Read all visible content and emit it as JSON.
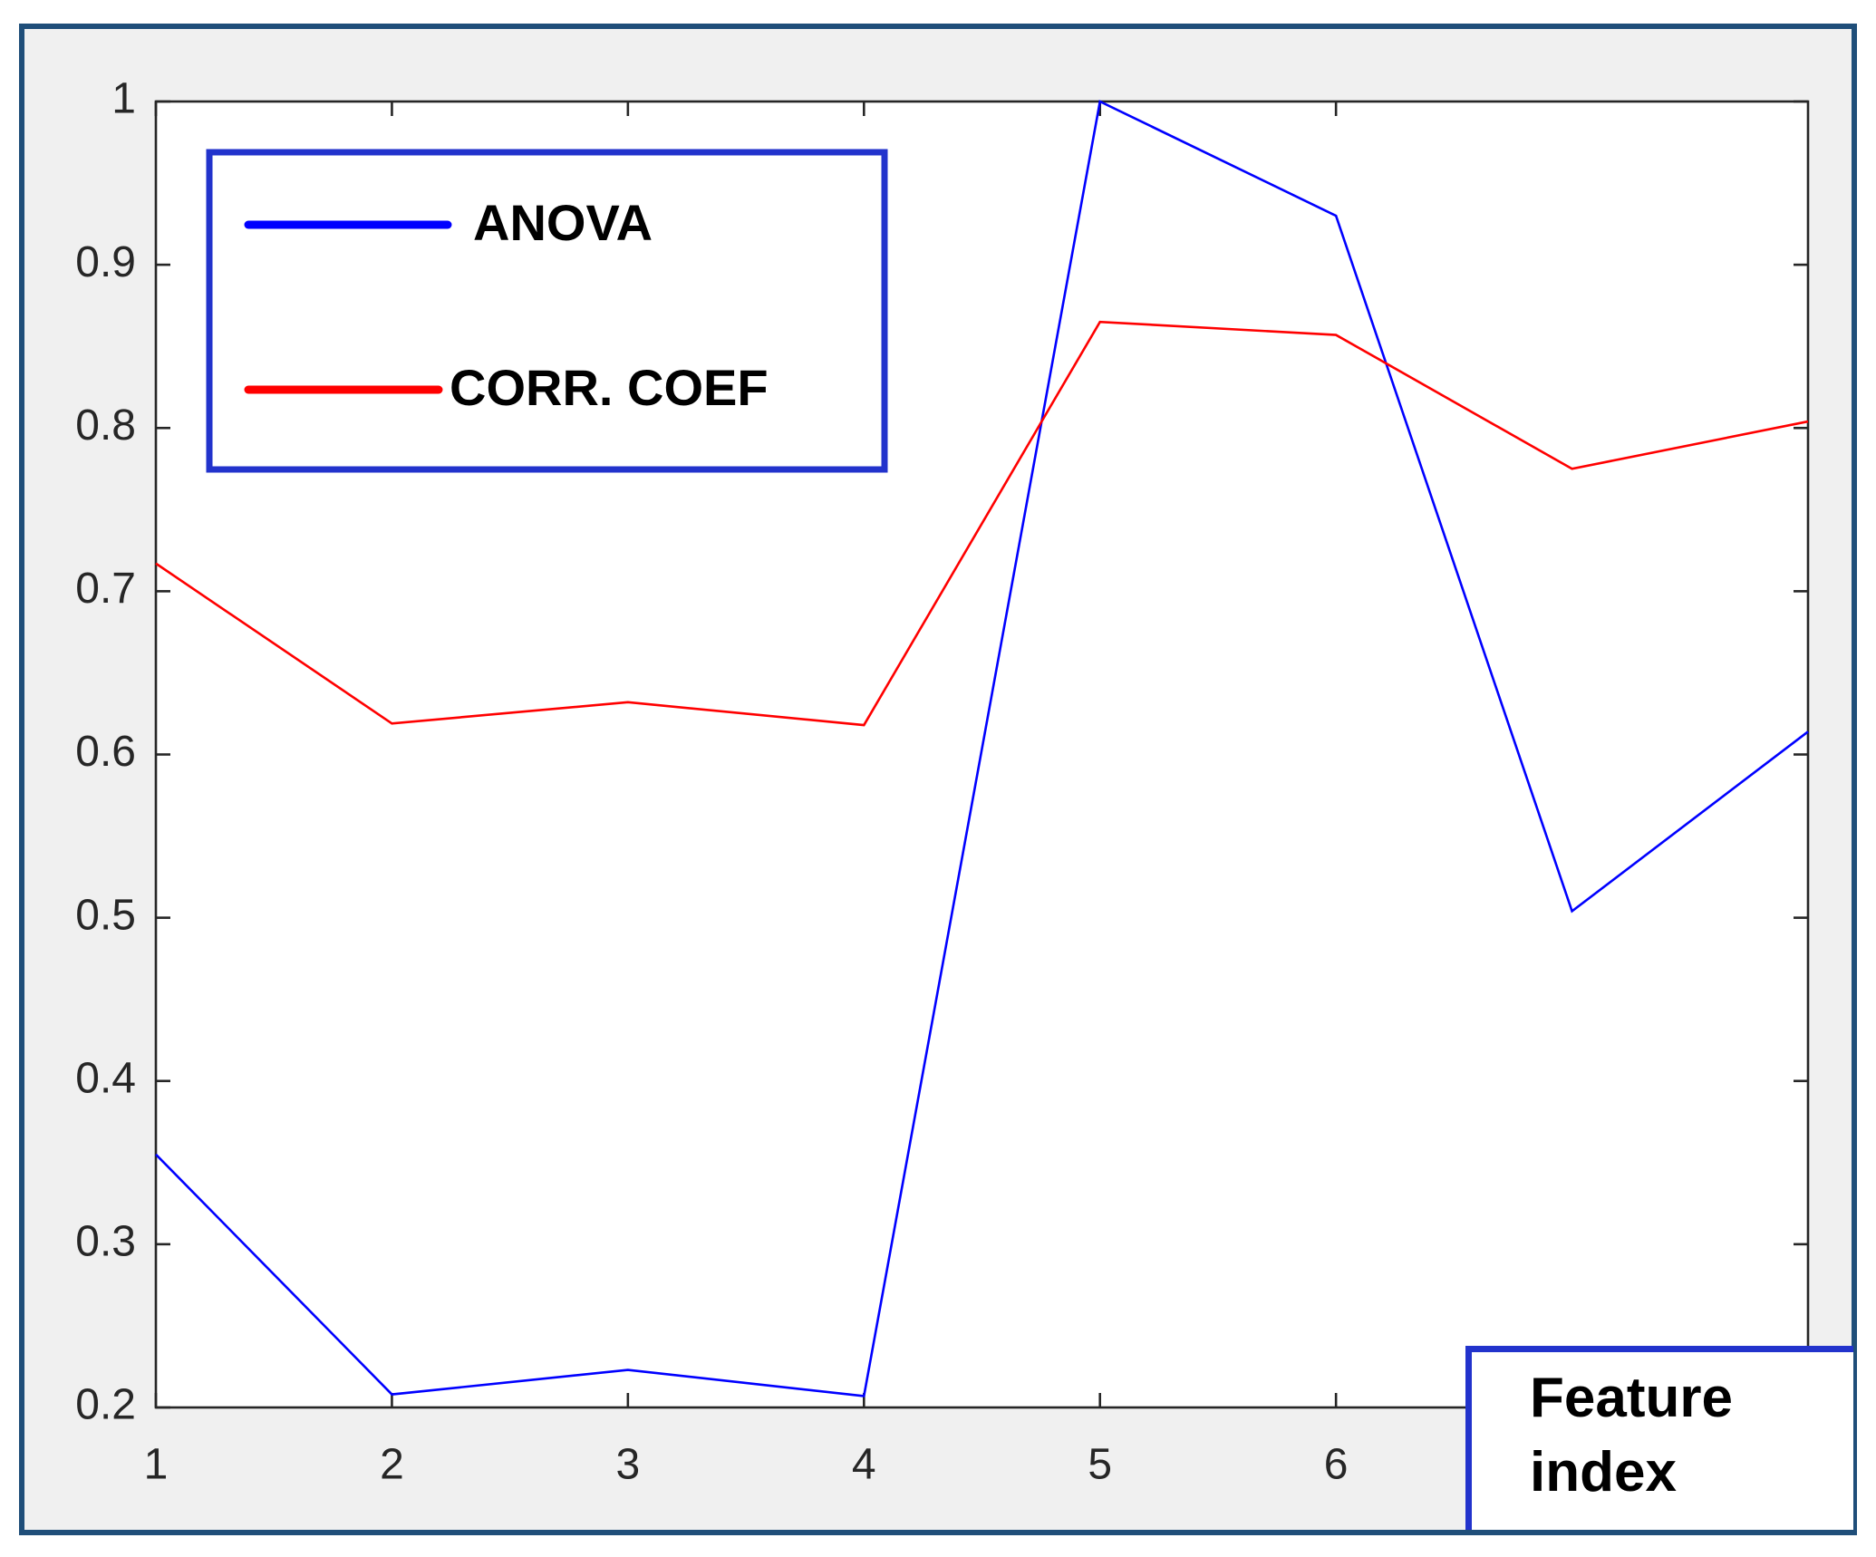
{
  "chart_data": {
    "type": "line",
    "x": [
      1,
      2,
      3,
      4,
      5,
      6,
      7,
      8
    ],
    "series": [
      {
        "name": "ANOVA",
        "color": "#0000ff",
        "values": [
          0.355,
          0.208,
          0.223,
          0.207,
          1.0,
          0.93,
          0.504,
          0.614
        ]
      },
      {
        "name": "CORR. COEF",
        "color": "#ff0000",
        "values": [
          0.717,
          0.619,
          0.632,
          0.618,
          0.865,
          0.857,
          0.775,
          0.804
        ]
      }
    ],
    "xlabel": "Feature index",
    "xlim": [
      1,
      8
    ],
    "xticks": [
      1,
      2,
      3,
      4,
      5,
      6
    ],
    "ylim": [
      0.2,
      1
    ],
    "yticks": [
      0.2,
      0.3,
      0.4,
      0.5,
      0.6,
      0.7,
      0.8,
      0.9,
      1
    ],
    "legend": "upper left"
  }
}
